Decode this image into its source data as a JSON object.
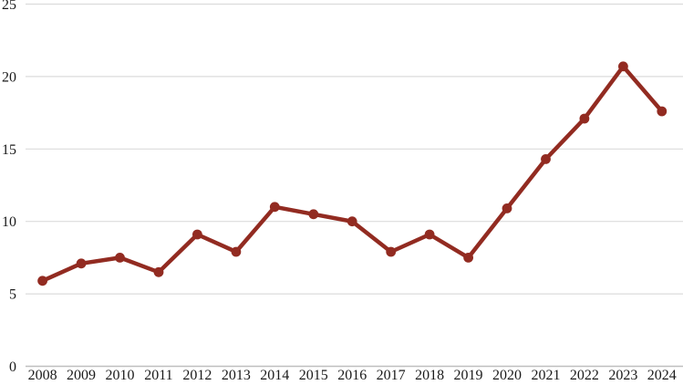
{
  "chart_data": {
    "type": "line",
    "title": "",
    "xlabel": "",
    "ylabel": "",
    "categories": [
      "2008",
      "2009",
      "2010",
      "2011",
      "2012",
      "2013",
      "2014",
      "2015",
      "2016",
      "2017",
      "2018",
      "2019",
      "2020",
      "2021",
      "2022",
      "2023",
      "2024"
    ],
    "series": [
      {
        "name": "",
        "values": [
          5.9,
          7.1,
          7.5,
          6.5,
          9.1,
          7.9,
          11.0,
          10.5,
          10.0,
          7.9,
          9.1,
          7.5,
          10.9,
          14.3,
          17.1,
          20.7,
          17.6
        ]
      }
    ],
    "ylim": [
      0,
      25
    ],
    "yticks": [
      0,
      5,
      10,
      15,
      20,
      25
    ],
    "grid": true,
    "legend_position": "none",
    "marker": "circle",
    "colors": {
      "line": "#922B21",
      "marker": "#922B21",
      "gridline": "#DCDCDC",
      "axis_line": "#BFBFBF",
      "tick_label": "#1A1A1A",
      "background": "#FFFFFF"
    }
  }
}
